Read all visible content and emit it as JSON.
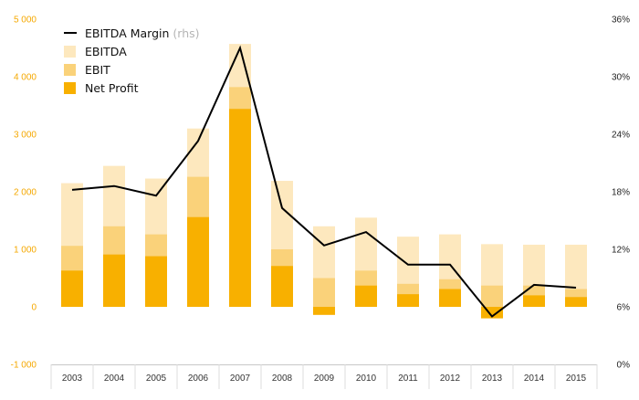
{
  "chart_data": {
    "type": "bar",
    "stacked_bars": true,
    "categories": [
      "2003",
      "2004",
      "2005",
      "2006",
      "2007",
      "2008",
      "2009",
      "2010",
      "2011",
      "2012",
      "2013",
      "2014",
      "2015"
    ],
    "series": [
      {
        "name": "EBITDA Margin",
        "name_suffix": "(rhs)",
        "type": "line",
        "axis": "right",
        "color": "#000000",
        "values": [
          18.2,
          18.6,
          17.6,
          23.3,
          33.0,
          16.3,
          12.4,
          13.8,
          10.4,
          10.4,
          5.0,
          8.3,
          8.0
        ]
      },
      {
        "name": "EBITDA",
        "type": "bar",
        "color": "#fde8be",
        "values": [
          2150,
          2450,
          2230,
          3100,
          4570,
          2190,
          1400,
          1550,
          1220,
          1260,
          1090,
          1080,
          1080
        ]
      },
      {
        "name": "EBIT",
        "type": "bar",
        "color": "#fad27a",
        "values": [
          1060,
          1400,
          1260,
          2260,
          3820,
          1000,
          500,
          630,
          400,
          480,
          370,
          370,
          310
        ]
      },
      {
        "name": "Net Profit",
        "type": "bar",
        "color": "#f8b000",
        "values": [
          630,
          910,
          880,
          1560,
          3440,
          710,
          -140,
          370,
          220,
          310,
          -200,
          200,
          170
        ]
      }
    ],
    "y_left": {
      "range": [
        -1000,
        5000
      ],
      "ticks": [
        "-1 000",
        "0",
        "1 000",
        "2 000",
        "3 000",
        "4 000",
        "5 000"
      ],
      "color": "#f5a800"
    },
    "y_right": {
      "range": [
        0,
        36
      ],
      "unit": "%",
      "ticks": [
        "0%",
        "6%",
        "12%",
        "18%",
        "24%",
        "30%",
        "36%"
      ]
    },
    "grid": false,
    "legend_position": "top-left"
  }
}
